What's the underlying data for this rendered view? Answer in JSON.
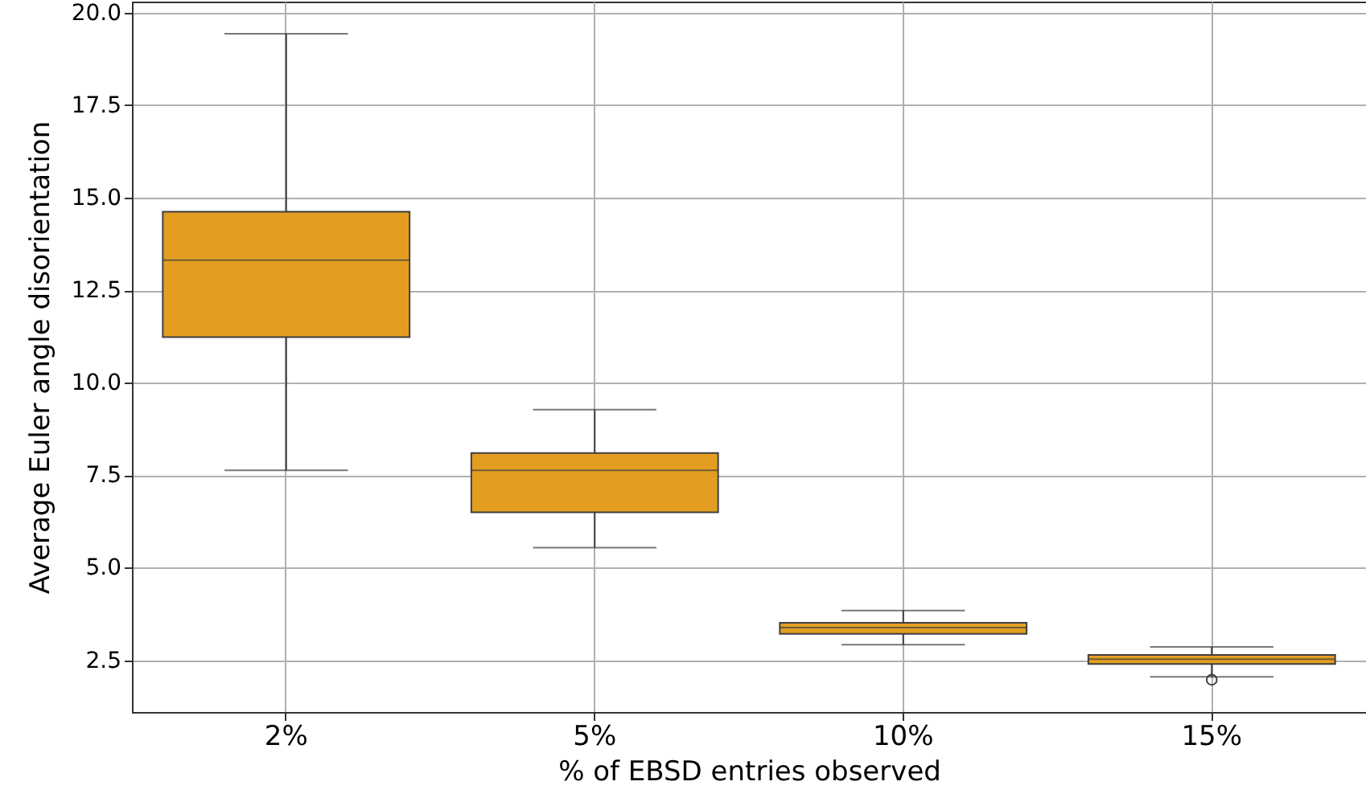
{
  "chart_data": {
    "type": "box",
    "xlabel": "% of EBSD entries observed",
    "ylabel": "Average Euler angle disorientation",
    "categories": [
      "2%",
      "5%",
      "10%",
      "15%"
    ],
    "boxes": [
      {
        "low": 7.63,
        "q1": 11.23,
        "median": 13.31,
        "q3": 14.62,
        "high": 19.43
      },
      {
        "low": 5.54,
        "q1": 6.5,
        "median": 7.63,
        "q3": 8.1,
        "high": 9.27
      },
      {
        "low": 2.92,
        "q1": 3.21,
        "median": 3.38,
        "q3": 3.51,
        "high": 3.84
      },
      {
        "low": 2.05,
        "q1": 2.4,
        "median": 2.53,
        "q3": 2.64,
        "high": 2.86,
        "outliers": [
          1.97
        ]
      }
    ],
    "color": "#e39e21",
    "ylim": [
      1.1,
      20.3
    ],
    "yticks": [
      2.5,
      {
        "value": 5,
        "label": "5.0"
      },
      7.5,
      {
        "value": 10,
        "label": "10.0"
      },
      12.5,
      {
        "value": 15,
        "label": "15.0"
      },
      17.5,
      {
        "value": 20,
        "label": "20.0"
      }
    ],
    "grid": true
  }
}
